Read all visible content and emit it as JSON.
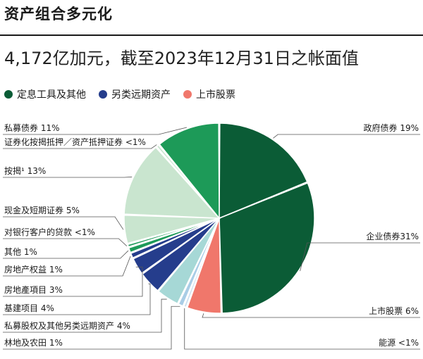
{
  "header": {
    "title": "资产组合多元化",
    "subtitle": "4,172亿加元，截至2023年12月31日之帐面值"
  },
  "legend": [
    {
      "label": "定息工具及其他",
      "color": "#0b5c36"
    },
    {
      "label": "另类远期资产",
      "color": "#253d8c"
    },
    {
      "label": "上市股票",
      "color": "#f0776b"
    }
  ],
  "chart_data": {
    "type": "pie",
    "slices": [
      {
        "label": "政府债券 19%",
        "value": 19,
        "color": "#0b5c36"
      },
      {
        "label": "企业债券31%",
        "value": 31,
        "color": "#0b5c36"
      },
      {
        "label": "上市股票 6%",
        "value": 6,
        "color": "#f0776b"
      },
      {
        "label": "能源 <1%",
        "value": 0.6,
        "color": "#c8dff0"
      },
      {
        "label": "林地及农田 1%",
        "value": 1,
        "color": "#a9cde6"
      },
      {
        "label": "私募股权及其他另类远期资产 4%",
        "value": 4,
        "color": "#a6d8d6"
      },
      {
        "label": "基建项目 4%",
        "value": 4,
        "color": "#253d8c"
      },
      {
        "label": "房地產項目 3%",
        "value": 3,
        "color": "#253d8c"
      },
      {
        "label": "房地产权益 1%",
        "value": 1,
        "color": "#253d8c"
      },
      {
        "label": "其他 1%",
        "value": 1,
        "color": "#1d9a58"
      },
      {
        "label": "对银行客户的贷款 <1%",
        "value": 0.6,
        "color": "#1d9a58"
      },
      {
        "label": "现金及短期证券 5%",
        "value": 5,
        "color": "#c9e5cf"
      },
      {
        "label": "按揭¹ 13%",
        "value": 13,
        "color": "#c9e5cf"
      },
      {
        "label": "证券化按揭抵押／资产抵押证券 <1%",
        "value": 0.6,
        "color": "#c9e5cf"
      },
      {
        "label": "私募债券 11%",
        "value": 11,
        "color": "#1d9a58"
      }
    ]
  }
}
